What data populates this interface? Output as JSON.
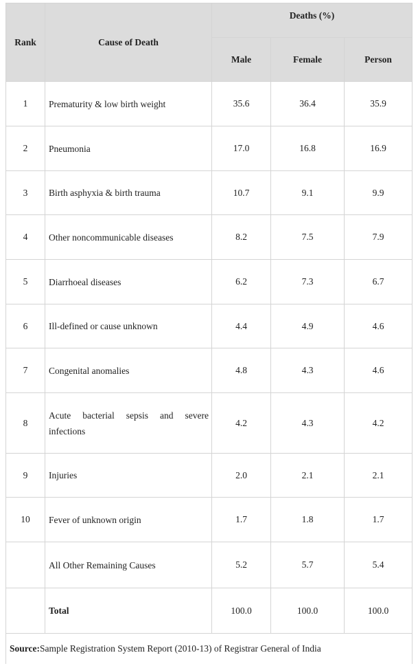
{
  "header": {
    "rank": "Rank",
    "cause": "Cause of Death",
    "deaths": "Deaths (%)",
    "male": "Male",
    "female": "Female",
    "person": "Person"
  },
  "rows": [
    {
      "rank": "1",
      "cause": "Prematurity & low birth weight",
      "male": "35.6",
      "female": "36.4",
      "person": "35.9"
    },
    {
      "rank": "2",
      "cause": "Pneumonia",
      "male": "17.0",
      "female": "16.8",
      "person": "16.9"
    },
    {
      "rank": "3",
      "cause": "Birth asphyxia & birth trauma",
      "male": "10.7",
      "female": "9.1",
      "person": "9.9"
    },
    {
      "rank": "4",
      "cause": "Other noncommunicable diseases",
      "male": "8.2",
      "female": "7.5",
      "person": "7.9"
    },
    {
      "rank": "5",
      "cause": "Diarrhoeal diseases",
      "male": "6.2",
      "female": "7.3",
      "person": "6.7"
    },
    {
      "rank": "6",
      "cause": "Ill-defined or cause unknown",
      "male": "4.4",
      "female": "4.9",
      "person": "4.6"
    },
    {
      "rank": "7",
      "cause": "Congenital anomalies",
      "male": "4.8",
      "female": "4.3",
      "person": "4.6"
    },
    {
      "rank": "8",
      "cause": "Acute bacterial sepsis and severe infections",
      "male": "4.2",
      "female": "4.3",
      "person": "4.2"
    },
    {
      "rank": "9",
      "cause": "Injuries",
      "male": "2.0",
      "female": "2.1",
      "person": "2.1"
    },
    {
      "rank": "10",
      "cause": "Fever of unknown origin",
      "male": "1.7",
      "female": "1.8",
      "person": "1.7"
    },
    {
      "cause": "All Other Remaining Causes",
      "male": "5.2",
      "female": "5.7",
      "person": "5.4"
    },
    {
      "cause": "Total",
      "male": "100.0",
      "female": "100.0",
      "person": "100.0"
    }
  ],
  "source": {
    "label": "Source:",
    "text": "Sample Registration System Report (2010-13) of Registrar General of India"
  }
}
